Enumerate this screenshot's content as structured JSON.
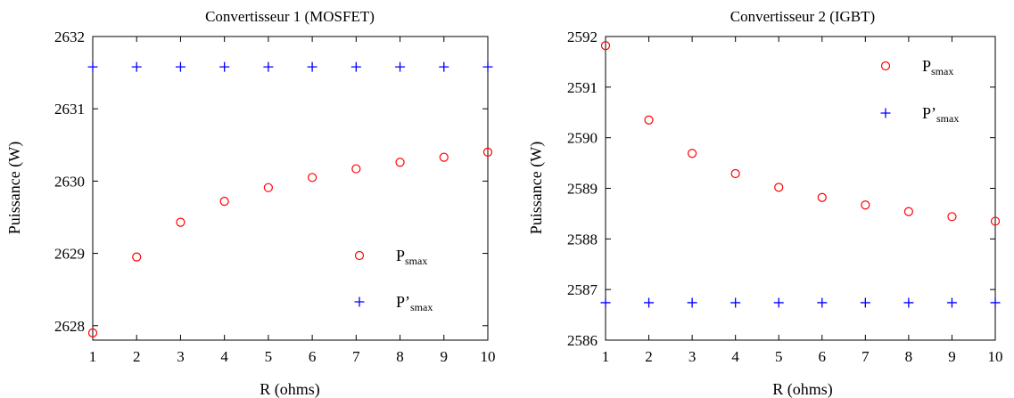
{
  "chart_data": [
    {
      "type": "scatter",
      "title": "Convertisseur 1 (MOSFET)",
      "xlabel": "R (ohms)",
      "ylabel": "Puissance (W)",
      "xlim": [
        1,
        10
      ],
      "ylim": [
        2627.8,
        2632
      ],
      "xticks": [
        1,
        2,
        3,
        4,
        5,
        6,
        7,
        8,
        9,
        10
      ],
      "yticks": [
        2628,
        2629,
        2630,
        2631,
        2632
      ],
      "grid": false,
      "legend_position": "lower-right",
      "x": [
        1,
        2,
        3,
        4,
        5,
        6,
        7,
        8,
        9,
        10
      ],
      "series": [
        {
          "legend_main": "P",
          "legend_sub": "smax",
          "marker": "circle",
          "color": "#ff0000",
          "values": [
            2627.9,
            2628.95,
            2629.43,
            2629.72,
            2629.91,
            2630.05,
            2630.17,
            2630.26,
            2630.33,
            2630.4
          ]
        },
        {
          "legend_main": "P’",
          "legend_sub": "smax",
          "marker": "plus",
          "color": "#0000ff",
          "values": [
            2631.58,
            2631.58,
            2631.58,
            2631.58,
            2631.58,
            2631.58,
            2631.58,
            2631.58,
            2631.58,
            2631.58
          ]
        }
      ]
    },
    {
      "type": "scatter",
      "title": "Convertisseur 2 (IGBT)",
      "xlabel": "R (ohms)",
      "ylabel": "Puissance (W)",
      "xlim": [
        1,
        10
      ],
      "ylim": [
        2586,
        2592
      ],
      "xticks": [
        1,
        2,
        3,
        4,
        5,
        6,
        7,
        8,
        9,
        10
      ],
      "yticks": [
        2586,
        2587,
        2588,
        2589,
        2590,
        2591,
        2592
      ],
      "grid": false,
      "legend_position": "upper-right",
      "x": [
        1,
        2,
        3,
        4,
        5,
        6,
        7,
        8,
        9,
        10
      ],
      "series": [
        {
          "legend_main": "P",
          "legend_sub": "smax",
          "marker": "circle",
          "color": "#ff0000",
          "values": [
            2591.82,
            2590.35,
            2589.69,
            2589.29,
            2589.02,
            2588.82,
            2588.67,
            2588.54,
            2588.44,
            2588.35
          ]
        },
        {
          "legend_main": "P’",
          "legend_sub": "smax",
          "marker": "plus",
          "color": "#0000ff",
          "values": [
            2586.74,
            2586.74,
            2586.74,
            2586.74,
            2586.74,
            2586.74,
            2586.74,
            2586.74,
            2586.74,
            2586.74
          ]
        }
      ]
    }
  ]
}
